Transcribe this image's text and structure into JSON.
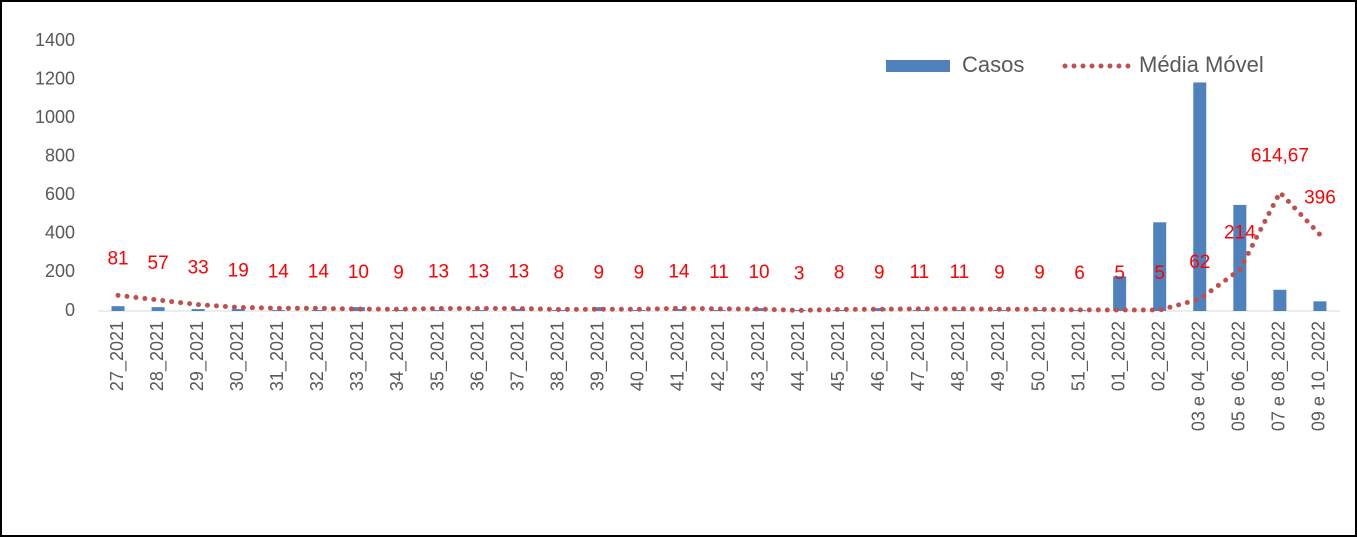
{
  "chart_data": {
    "type": "bar",
    "categories": [
      "27_2021",
      "28_2021",
      "29_2021",
      "30_2021",
      "31_2021",
      "32_2021",
      "33_2021",
      "34_2021",
      "35_2021",
      "36_2021",
      "37_2021",
      "38_2021",
      "39_2021",
      "40_2021",
      "41_2021",
      "42_2021",
      "43_2021",
      "44_2021",
      "45_2021",
      "46_2021",
      "47_2021",
      "48_2021",
      "49_2021",
      "50_2021",
      "51_2021",
      "01_2022",
      "02_2022",
      "03 e 04_2022",
      "05 e 06_2022",
      "07 e 08_2022",
      "09 e 10_2022"
    ],
    "series": [
      {
        "name": "Casos",
        "type": "bar",
        "color": "#4f81bd",
        "values": [
          25,
          20,
          10,
          10,
          5,
          5,
          20,
          5,
          5,
          5,
          10,
          5,
          20,
          5,
          10,
          5,
          15,
          5,
          5,
          15,
          5,
          5,
          5,
          5,
          5,
          180,
          460,
          1185,
          550,
          110,
          50
        ]
      },
      {
        "name": "Média Móvel",
        "type": "line",
        "color": "#c0504d",
        "values": [
          81,
          57,
          33,
          19,
          14,
          14,
          10,
          9,
          13,
          13,
          13,
          8,
          9,
          9,
          14,
          11,
          10,
          3,
          8,
          9,
          11,
          11,
          9,
          9,
          6,
          5,
          5,
          62,
          214,
          614.67,
          396
        ],
        "value_labels": [
          "81",
          "57",
          "33",
          "19",
          "14",
          "14",
          "10",
          "9",
          "13",
          "13",
          "13",
          "8",
          "9",
          "9",
          "14",
          "11",
          "10",
          "3",
          "8",
          "9",
          "11",
          "11",
          "9",
          "9",
          "6",
          "5",
          "5",
          "62",
          "214",
          "614,67",
          "396"
        ]
      }
    ],
    "ylim": [
      0,
      1400
    ],
    "yticks": [
      0,
      200,
      400,
      600,
      800,
      1000,
      1200,
      1400
    ],
    "legend": "top-right",
    "grid": false
  }
}
